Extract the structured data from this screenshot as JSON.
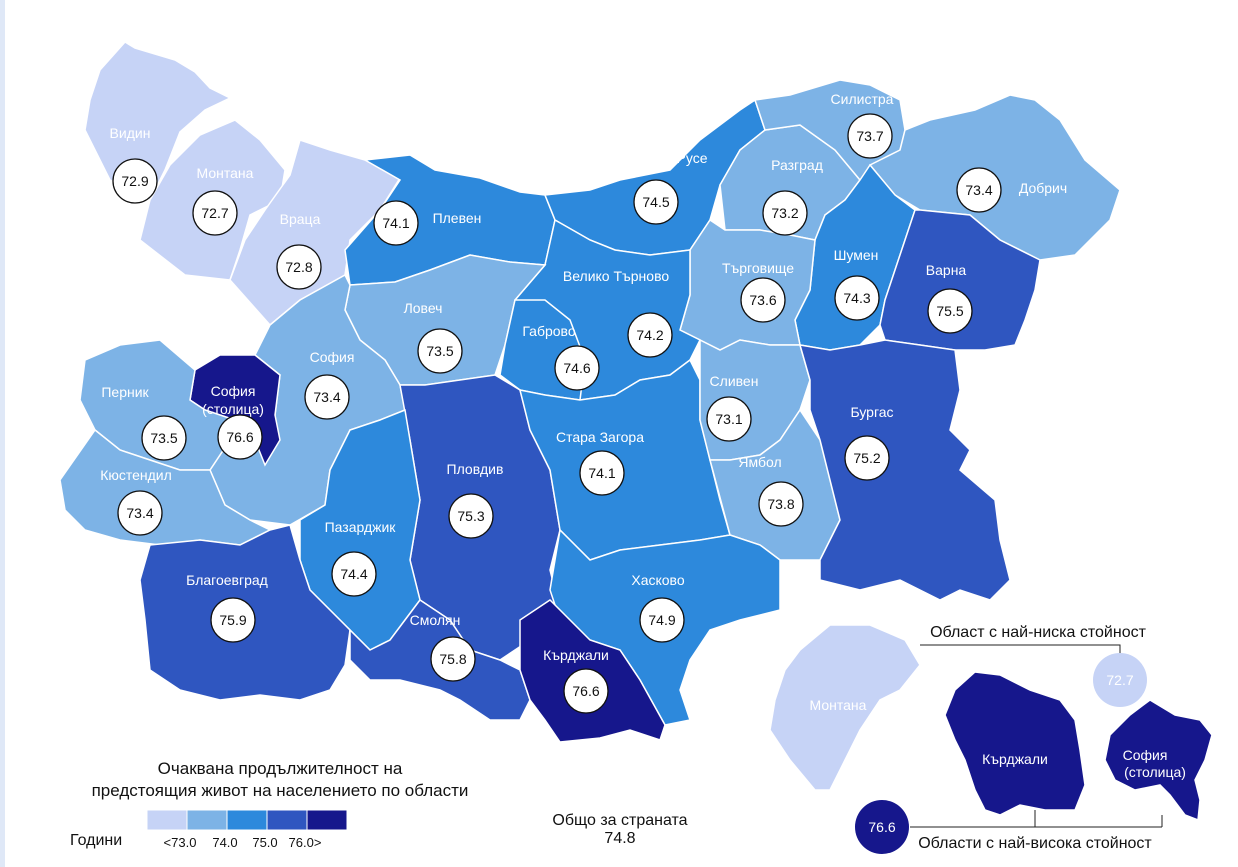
{
  "colors": {
    "class_1": "#c6d3f6",
    "class_2": "#7db3e6",
    "class_3": "#2d89dc",
    "class_4": "#2f56c0",
    "class_5": "#16178c",
    "border": "#ffffff",
    "circle_fill": "#ffffff",
    "circle_stroke": "#111111"
  },
  "regions": [
    {
      "name": "Видин",
      "value": "72.9",
      "class": 1
    },
    {
      "name": "Монтана",
      "value": "72.7",
      "class": 1
    },
    {
      "name": "Враца",
      "value": "72.8",
      "class": 1
    },
    {
      "name": "Плевен",
      "value": "74.1",
      "class": 3
    },
    {
      "name": "Русе",
      "value": "74.5",
      "class": 3
    },
    {
      "name": "Разград",
      "value": "73.2",
      "class": 2
    },
    {
      "name": "Силистра",
      "value": "73.7",
      "class": 2
    },
    {
      "name": "Добрич",
      "value": "73.4",
      "class": 2
    },
    {
      "name": "Шумен",
      "value": "74.3",
      "class": 3
    },
    {
      "name": "Търговище",
      "value": "73.6",
      "class": 2
    },
    {
      "name": "Варна",
      "value": "75.5",
      "class": 4
    },
    {
      "name": "Велико Търново",
      "value": "74.2",
      "class": 3
    },
    {
      "name": "Ловеч",
      "value": "73.5",
      "class": 2
    },
    {
      "name": "Габрово",
      "value": "74.6",
      "class": 3
    },
    {
      "name": "София",
      "value": "73.4",
      "class": 2
    },
    {
      "name": "София (столица)",
      "value": "76.6",
      "class": 5
    },
    {
      "name": "Перник",
      "value": "73.5",
      "class": 2
    },
    {
      "name": "Кюстендил",
      "value": "73.4",
      "class": 2
    },
    {
      "name": "Пловдив",
      "value": "75.3",
      "class": 4
    },
    {
      "name": "Стара Загора",
      "value": "74.1",
      "class": 3
    },
    {
      "name": "Сливен",
      "value": "73.1",
      "class": 2
    },
    {
      "name": "Ямбол",
      "value": "73.8",
      "class": 2
    },
    {
      "name": "Бургас",
      "value": "75.2",
      "class": 4
    },
    {
      "name": "Пазарджик",
      "value": "74.4",
      "class": 3
    },
    {
      "name": "Благоевград",
      "value": "75.9",
      "class": 4
    },
    {
      "name": "Смолян",
      "value": "75.8",
      "class": 4
    },
    {
      "name": "Хасково",
      "value": "74.9",
      "class": 3
    },
    {
      "name": "Кърджали",
      "value": "76.6",
      "class": 5
    }
  ],
  "legend": {
    "title_line1": "Очаквана продължителност на",
    "title_line2": "предстоящия живот на населението по области",
    "unit": "Години",
    "labels": [
      "<73.0",
      "74.0",
      "75.0",
      "76.0>"
    ]
  },
  "total": {
    "label": "Общо за страната",
    "value": "74.8"
  },
  "inset": {
    "lowest_label": "Област с най-ниска стойност",
    "highest_label": "Области с най-висока стойност",
    "lowest_region": "Монтана",
    "lowest_value": "72.7",
    "highest_regions": [
      "Кърджали",
      "София",
      "(столица)"
    ],
    "highest_value": "76.6"
  }
}
